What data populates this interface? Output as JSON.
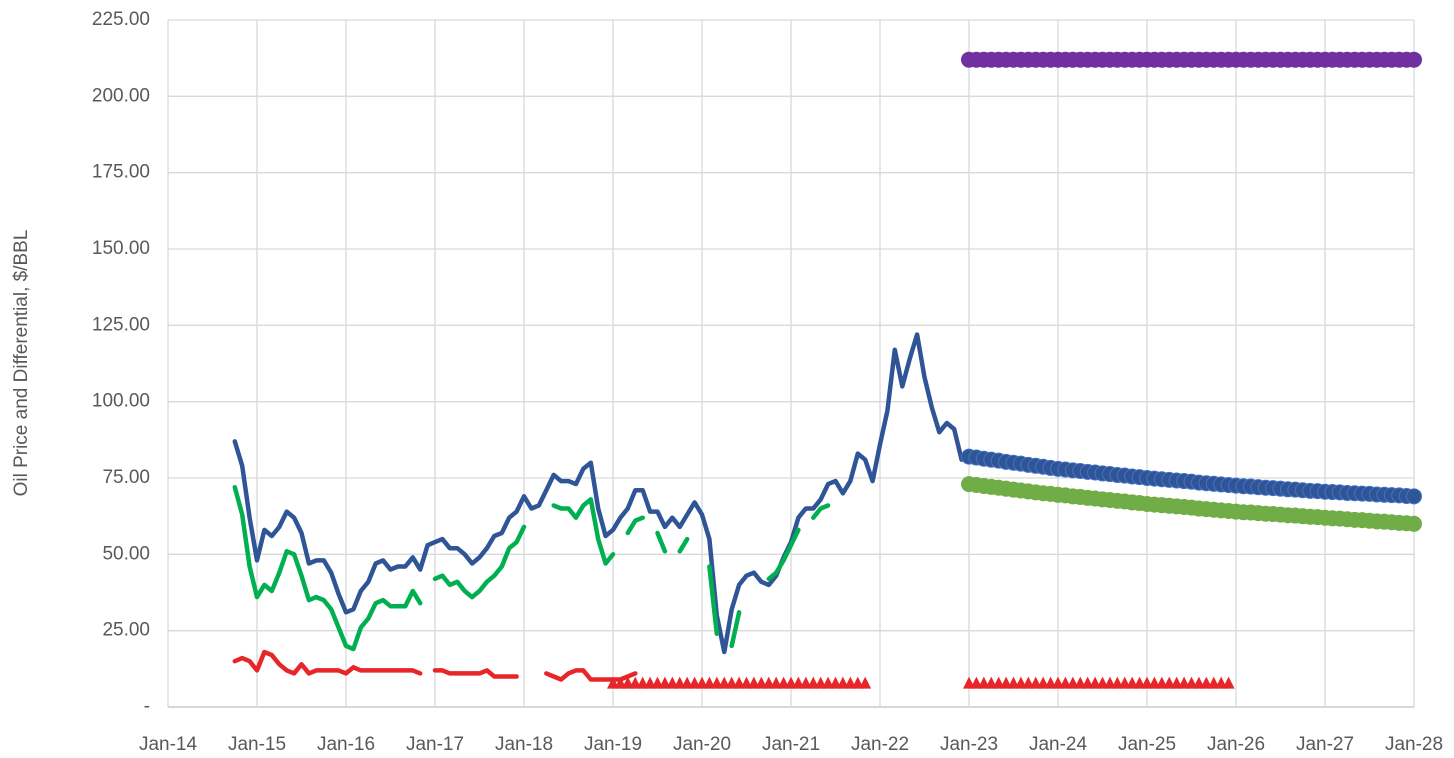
{
  "chart_data": {
    "type": "line",
    "y_label": "Oil Price and Differential, $/BBL",
    "xlim": [
      "2014-01",
      "2028-01"
    ],
    "xticks": [
      {
        "value": "2014-01",
        "label": "Jan-14"
      },
      {
        "value": "2015-01",
        "label": "Jan-15"
      },
      {
        "value": "2016-01",
        "label": "Jan-16"
      },
      {
        "value": "2017-01",
        "label": "Jan-17"
      },
      {
        "value": "2018-01",
        "label": "Jan-18"
      },
      {
        "value": "2019-01",
        "label": "Jan-19"
      },
      {
        "value": "2020-01",
        "label": "Jan-20"
      },
      {
        "value": "2021-01",
        "label": "Jan-21"
      },
      {
        "value": "2022-01",
        "label": "Jan-22"
      },
      {
        "value": "2023-01",
        "label": "Jan-23"
      },
      {
        "value": "2024-01",
        "label": "Jan-24"
      },
      {
        "value": "2025-01",
        "label": "Jan-25"
      },
      {
        "value": "2026-01",
        "label": "Jan-26"
      },
      {
        "value": "2027-01",
        "label": "Jan-27"
      },
      {
        "value": "2028-01",
        "label": "Jan-28"
      }
    ],
    "ylim": [
      0,
      225
    ],
    "yticks": [
      {
        "value": 0,
        "label": "-"
      },
      {
        "value": 25,
        "label": "25.00"
      },
      {
        "value": 50,
        "label": "50.00"
      },
      {
        "value": 75,
        "label": "75.00"
      },
      {
        "value": 100,
        "label": "100.00"
      },
      {
        "value": 125,
        "label": "125.00"
      },
      {
        "value": 150,
        "label": "150.00"
      },
      {
        "value": 175,
        "label": "175.00"
      },
      {
        "value": 200,
        "label": "200.00"
      },
      {
        "value": 225,
        "label": "225.00"
      }
    ],
    "grid": true,
    "x": [
      "2014-10",
      "2014-11",
      "2014-12",
      "2015-01",
      "2015-02",
      "2015-03",
      "2015-04",
      "2015-05",
      "2015-06",
      "2015-07",
      "2015-08",
      "2015-09",
      "2015-10",
      "2015-11",
      "2015-12",
      "2016-01",
      "2016-02",
      "2016-03",
      "2016-04",
      "2016-05",
      "2016-06",
      "2016-07",
      "2016-08",
      "2016-09",
      "2016-10",
      "2016-11",
      "2016-12",
      "2017-01",
      "2017-02",
      "2017-03",
      "2017-04",
      "2017-05",
      "2017-06",
      "2017-07",
      "2017-08",
      "2017-09",
      "2017-10",
      "2017-11",
      "2017-12",
      "2018-01",
      "2018-02",
      "2018-03",
      "2018-04",
      "2018-05",
      "2018-06",
      "2018-07",
      "2018-08",
      "2018-09",
      "2018-10",
      "2018-11",
      "2018-12",
      "2019-01",
      "2019-02",
      "2019-03",
      "2019-04",
      "2019-05",
      "2019-06",
      "2019-07",
      "2019-08",
      "2019-09",
      "2019-10",
      "2019-11",
      "2019-12",
      "2020-01",
      "2020-02",
      "2020-03",
      "2020-04",
      "2020-05",
      "2020-06",
      "2020-07",
      "2020-08",
      "2020-09",
      "2020-10",
      "2020-11",
      "2020-12",
      "2021-01",
      "2021-02",
      "2021-03",
      "2021-04",
      "2021-05",
      "2021-06",
      "2021-07",
      "2021-08",
      "2021-09",
      "2021-10",
      "2021-11",
      "2021-12",
      "2022-01",
      "2022-02",
      "2022-03",
      "2022-04",
      "2022-05",
      "2022-06",
      "2022-07",
      "2022-08",
      "2022-09",
      "2022-10",
      "2022-11",
      "2022-12"
    ],
    "series": [
      {
        "color": "#2f5597",
        "style": "line",
        "values": [
          87,
          79,
          62,
          48,
          58,
          56,
          59,
          64,
          62,
          57,
          47,
          48,
          48,
          44,
          37,
          31,
          32,
          38,
          41,
          47,
          48,
          45,
          46,
          46,
          49,
          45,
          53,
          54,
          55,
          52,
          52,
          50,
          47,
          49,
          52,
          56,
          57,
          62,
          64,
          69,
          65,
          66,
          71,
          76,
          74,
          74,
          73,
          78,
          80,
          65,
          56,
          58,
          62,
          65,
          71,
          71,
          64,
          64,
          59,
          62,
          59,
          63,
          67,
          63,
          55,
          30,
          18,
          32,
          40,
          43,
          44,
          41,
          40,
          43,
          49,
          54,
          62,
          65,
          65,
          68,
          73,
          74,
          70,
          74,
          83,
          81,
          74,
          86,
          97,
          117,
          105,
          114,
          122,
          108,
          98,
          90,
          93,
          91,
          81
        ]
      },
      {
        "color": "#00b050",
        "style": "line",
        "values": [
          72,
          63,
          46,
          36,
          40,
          38,
          44,
          51,
          50,
          43,
          35,
          36,
          35,
          32,
          26,
          20,
          19,
          26,
          29,
          34,
          35,
          33,
          33,
          33,
          38,
          34,
          null,
          42,
          43,
          40,
          41,
          38,
          36,
          38,
          41,
          43,
          46,
          52,
          54,
          59,
          null,
          null,
          null,
          66,
          65,
          65,
          62,
          66,
          68,
          55,
          47,
          50,
          null,
          57,
          61,
          62,
          null,
          57,
          51,
          null,
          51,
          55,
          null,
          null,
          46,
          24,
          null,
          20,
          31,
          null,
          null,
          null,
          42,
          44,
          48,
          53,
          58,
          null,
          62,
          65,
          66,
          null,
          null,
          null,
          null,
          null,
          null,
          null,
          null,
          null,
          null,
          null,
          null,
          null,
          null,
          null,
          null,
          null,
          null
        ]
      },
      {
        "color": "#e8262a",
        "style": "line",
        "values": [
          15,
          16,
          15,
          12,
          18,
          17,
          14,
          12,
          11,
          14,
          11,
          12,
          12,
          12,
          12,
          11,
          13,
          12,
          12,
          12,
          12,
          12,
          12,
          12,
          12,
          11,
          null,
          12,
          12,
          11,
          11,
          11,
          11,
          11,
          12,
          10,
          10,
          10,
          10,
          null,
          null,
          null,
          11,
          10,
          9,
          11,
          12,
          12,
          9,
          9,
          9,
          9,
          9,
          10,
          11,
          null,
          null,
          null,
          null,
          null,
          null,
          null,
          null,
          null,
          null,
          null,
          null,
          null,
          null,
          null,
          null,
          null,
          null,
          null,
          null,
          null,
          null,
          null,
          null,
          null,
          null,
          null,
          null,
          null,
          null,
          null,
          null,
          null,
          null,
          null,
          null,
          null,
          null,
          null,
          null,
          null,
          null,
          null,
          null
        ]
      },
      {
        "color": "#e8262a",
        "style": "triangle",
        "x": [
          "2019-01",
          "2019-02",
          "2019-03",
          "2019-04",
          "2019-05",
          "2019-06",
          "2019-07",
          "2019-08",
          "2019-09",
          "2019-10",
          "2019-11",
          "2019-12",
          "2020-01",
          "2020-02",
          "2020-03",
          "2020-04",
          "2020-05",
          "2020-06",
          "2020-07",
          "2020-08",
          "2020-09",
          "2020-10",
          "2020-11",
          "2020-12",
          "2021-01",
          "2021-02",
          "2021-03",
          "2021-04",
          "2021-05",
          "2021-06",
          "2021-07",
          "2021-08",
          "2021-09",
          "2021-10",
          "2021-11",
          "2021-12",
          "2022-01",
          "2022-02",
          "2022-03",
          "2022-04",
          "2022-05",
          "2022-06",
          "2022-07",
          "2022-08",
          "2022-09",
          "2022-10",
          "2022-11",
          "2022-12",
          "2023-01",
          "2023-02",
          "2023-03",
          "2023-04",
          "2023-05",
          "2023-06",
          "2023-07",
          "2023-08",
          "2023-09",
          "2023-10",
          "2023-11",
          "2023-12",
          "2024-01",
          "2024-02",
          "2024-03",
          "2024-04",
          "2024-05",
          "2024-06",
          "2024-07",
          "2024-08",
          "2024-09",
          "2024-10",
          "2024-11",
          "2024-12",
          "2025-01",
          "2025-02",
          "2025-03",
          "2025-04",
          "2025-05",
          "2025-06",
          "2025-07",
          "2025-08",
          "2025-09",
          "2025-10",
          "2025-11",
          "2025-12"
        ],
        "values": [
          8,
          8,
          8,
          8,
          8,
          8,
          8,
          8,
          8,
          8,
          8,
          8,
          8,
          8,
          8,
          8,
          8,
          8,
          8,
          8,
          8,
          8,
          8,
          8,
          8,
          8,
          8,
          8,
          8,
          8,
          8,
          8,
          8,
          8,
          8,
          null,
          null,
          null,
          null,
          null,
          null,
          null,
          null,
          null,
          null,
          null,
          null,
          null,
          8,
          8,
          8,
          8,
          8,
          8,
          8,
          8,
          8,
          8,
          8,
          8,
          8,
          8,
          8,
          8,
          8,
          8,
          8,
          8,
          8,
          8,
          8,
          8,
          8,
          8,
          8,
          8,
          8,
          8,
          8,
          8,
          8,
          8,
          8,
          8
        ]
      },
      {
        "color": "#7030a0",
        "style": "circle",
        "x": [
          "2023-01",
          "2023-02",
          "2023-03",
          "2023-04",
          "2023-05",
          "2023-06",
          "2023-07",
          "2023-08",
          "2023-09",
          "2023-10",
          "2023-11",
          "2023-12",
          "2024-01",
          "2024-02",
          "2024-03",
          "2024-04",
          "2024-05",
          "2024-06",
          "2024-07",
          "2024-08",
          "2024-09",
          "2024-10",
          "2024-11",
          "2024-12",
          "2025-01",
          "2025-02",
          "2025-03",
          "2025-04",
          "2025-05",
          "2025-06",
          "2025-07",
          "2025-08",
          "2025-09",
          "2025-10",
          "2025-11",
          "2025-12",
          "2026-01",
          "2026-02",
          "2026-03",
          "2026-04",
          "2026-05",
          "2026-06",
          "2026-07",
          "2026-08",
          "2026-09",
          "2026-10",
          "2026-11",
          "2026-12",
          "2027-01",
          "2027-02",
          "2027-03",
          "2027-04",
          "2027-05",
          "2027-06",
          "2027-07",
          "2027-08",
          "2027-09",
          "2027-10",
          "2027-11",
          "2027-12",
          "2028-01"
        ],
        "values": [
          212,
          212,
          212,
          212,
          212,
          212,
          212,
          212,
          212,
          212,
          212,
          212,
          212,
          212,
          212,
          212,
          212,
          212,
          212,
          212,
          212,
          212,
          212,
          212,
          212,
          212,
          212,
          212,
          212,
          212,
          212,
          212,
          212,
          212,
          212,
          212,
          212,
          212,
          212,
          212,
          212,
          212,
          212,
          212,
          212,
          212,
          212,
          212,
          212,
          212,
          212,
          212,
          212,
          212,
          212,
          212,
          212,
          212,
          212,
          212,
          212
        ]
      },
      {
        "color": "#2f5597",
        "style": "circle",
        "x": [
          "2023-01",
          "2023-02",
          "2023-03",
          "2023-04",
          "2023-05",
          "2023-06",
          "2023-07",
          "2023-08",
          "2023-09",
          "2023-10",
          "2023-11",
          "2023-12",
          "2024-01",
          "2024-02",
          "2024-03",
          "2024-04",
          "2024-05",
          "2024-06",
          "2024-07",
          "2024-08",
          "2024-09",
          "2024-10",
          "2024-11",
          "2024-12",
          "2025-01",
          "2025-02",
          "2025-03",
          "2025-04",
          "2025-05",
          "2025-06",
          "2025-07",
          "2025-08",
          "2025-09",
          "2025-10",
          "2025-11",
          "2025-12",
          "2026-01",
          "2026-02",
          "2026-03",
          "2026-04",
          "2026-05",
          "2026-06",
          "2026-07",
          "2026-08",
          "2026-09",
          "2026-10",
          "2026-11",
          "2026-12",
          "2027-01",
          "2027-02",
          "2027-03",
          "2027-04",
          "2027-05",
          "2027-06",
          "2027-07",
          "2027-08",
          "2027-09",
          "2027-10",
          "2027-11",
          "2027-12",
          "2028-01"
        ],
        "values": [
          82.0,
          81.7,
          81.3,
          81.0,
          80.7,
          80.3,
          80.0,
          79.7,
          79.3,
          79.0,
          78.7,
          78.3,
          78.0,
          77.8,
          77.5,
          77.3,
          77.0,
          76.8,
          76.5,
          76.3,
          76.0,
          75.8,
          75.5,
          75.3,
          75.0,
          74.8,
          74.6,
          74.4,
          74.2,
          74.0,
          73.8,
          73.5,
          73.3,
          73.1,
          72.9,
          72.7,
          72.5,
          72.3,
          72.2,
          72.0,
          71.8,
          71.7,
          71.5,
          71.3,
          71.2,
          71.0,
          70.8,
          70.7,
          70.5,
          70.4,
          70.3,
          70.1,
          70.0,
          69.9,
          69.8,
          69.6,
          69.5,
          69.4,
          69.3,
          69.1,
          69.0
        ]
      },
      {
        "color": "#70ad47",
        "style": "circle",
        "x": [
          "2023-01",
          "2023-02",
          "2023-03",
          "2023-04",
          "2023-05",
          "2023-06",
          "2023-07",
          "2023-08",
          "2023-09",
          "2023-10",
          "2023-11",
          "2023-12",
          "2024-01",
          "2024-02",
          "2024-03",
          "2024-04",
          "2024-05",
          "2024-06",
          "2024-07",
          "2024-08",
          "2024-09",
          "2024-10",
          "2024-11",
          "2024-12",
          "2025-01",
          "2025-02",
          "2025-03",
          "2025-04",
          "2025-05",
          "2025-06",
          "2025-07",
          "2025-08",
          "2025-09",
          "2025-10",
          "2025-11",
          "2025-12",
          "2026-01",
          "2026-02",
          "2026-03",
          "2026-04",
          "2026-05",
          "2026-06",
          "2026-07",
          "2026-08",
          "2026-09",
          "2026-10",
          "2026-11",
          "2026-12",
          "2027-01",
          "2027-02",
          "2027-03",
          "2027-04",
          "2027-05",
          "2027-06",
          "2027-07",
          "2027-08",
          "2027-09",
          "2027-10",
          "2027-11",
          "2027-12",
          "2028-01"
        ],
        "values": [
          73.0,
          72.7,
          72.4,
          72.1,
          71.8,
          71.5,
          71.2,
          70.9,
          70.6,
          70.3,
          70.0,
          69.8,
          69.5,
          69.3,
          69.0,
          68.8,
          68.5,
          68.3,
          68.0,
          67.8,
          67.5,
          67.3,
          67.0,
          66.8,
          66.5,
          66.3,
          66.1,
          65.9,
          65.7,
          65.5,
          65.3,
          65.0,
          64.8,
          64.6,
          64.4,
          64.2,
          64.0,
          63.8,
          63.7,
          63.5,
          63.3,
          63.2,
          63.0,
          62.8,
          62.7,
          62.5,
          62.3,
          62.2,
          62.0,
          61.8,
          61.7,
          61.5,
          61.3,
          61.2,
          61.0,
          60.8,
          60.7,
          60.5,
          60.3,
          60.2,
          60.0
        ]
      }
    ]
  }
}
